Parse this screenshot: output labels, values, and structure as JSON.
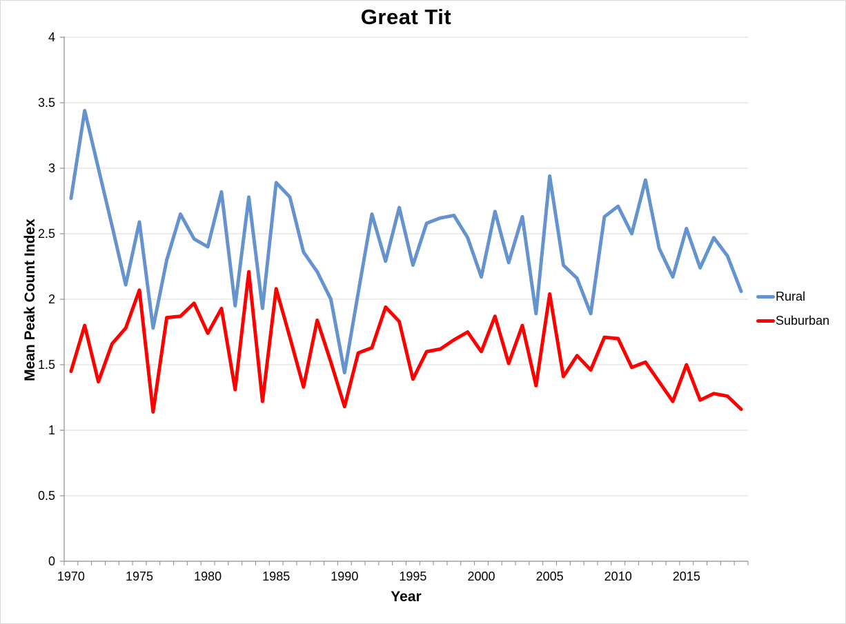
{
  "chart_data": {
    "type": "line",
    "title": "Great Tit",
    "xlabel": "Year",
    "ylabel": "Mean Peak Count Index",
    "ylim": [
      0,
      4
    ],
    "y_ticks": [
      0,
      0.5,
      1,
      1.5,
      2,
      2.5,
      3,
      3.5,
      4
    ],
    "y_tick_labels": [
      "0",
      "0.5",
      "1",
      "1.5",
      "2",
      "2.5",
      "3",
      "3.5",
      "4"
    ],
    "x_tick_labels": [
      "1970",
      "1975",
      "1980",
      "1985",
      "1990",
      "1995",
      "2000",
      "2005",
      "2010",
      "2015"
    ],
    "grid": "horizontal",
    "legend_position": "right",
    "colors": {
      "rural": "#6593CE",
      "suburban": "#FF0000",
      "gridline": "#D9D9D9",
      "axis": "#8C8C8C",
      "text": "#000000"
    },
    "x": [
      1970,
      1971,
      1972,
      1973,
      1974,
      1975,
      1976,
      1977,
      1978,
      1979,
      1980,
      1981,
      1982,
      1983,
      1984,
      1985,
      1986,
      1987,
      1988,
      1989,
      1990,
      1991,
      1992,
      1993,
      1994,
      1995,
      1996,
      1997,
      1998,
      1999,
      2000,
      2001,
      2002,
      2003,
      2004,
      2005,
      2006,
      2007,
      2008,
      2009,
      2010,
      2011,
      2012,
      2013,
      2014,
      2015,
      2016,
      2017,
      2018,
      2019
    ],
    "series": [
      {
        "name": "Rural",
        "color": "#6593CE",
        "values": [
          2.77,
          3.44,
          3.0,
          2.56,
          2.11,
          2.59,
          1.78,
          2.3,
          2.65,
          2.46,
          2.4,
          2.82,
          1.95,
          2.78,
          1.93,
          2.89,
          2.78,
          2.36,
          2.21,
          2.0,
          1.44,
          2.05,
          2.65,
          2.29,
          2.7,
          2.26,
          2.58,
          2.62,
          2.64,
          2.47,
          2.17,
          2.67,
          2.28,
          2.63,
          1.89,
          2.94,
          2.26,
          2.16,
          1.89,
          2.63,
          2.71,
          2.5,
          2.91,
          2.39,
          2.17,
          2.54,
          2.24,
          2.47,
          2.33,
          2.06
        ]
      },
      {
        "name": "Suburban",
        "color": "#FF0000",
        "values": [
          1.45,
          1.8,
          1.37,
          1.66,
          1.78,
          2.07,
          1.14,
          1.86,
          1.87,
          1.97,
          1.74,
          1.93,
          1.31,
          2.21,
          1.22,
          2.08,
          1.71,
          1.33,
          1.84,
          1.52,
          1.18,
          1.59,
          1.63,
          1.94,
          1.83,
          1.39,
          1.6,
          1.62,
          1.69,
          1.75,
          1.6,
          1.87,
          1.51,
          1.8,
          1.34,
          2.04,
          1.41,
          1.57,
          1.46,
          1.71,
          1.7,
          1.48,
          1.52,
          1.37,
          1.22,
          1.5,
          1.23,
          1.28,
          1.26,
          1.16
        ]
      }
    ]
  }
}
